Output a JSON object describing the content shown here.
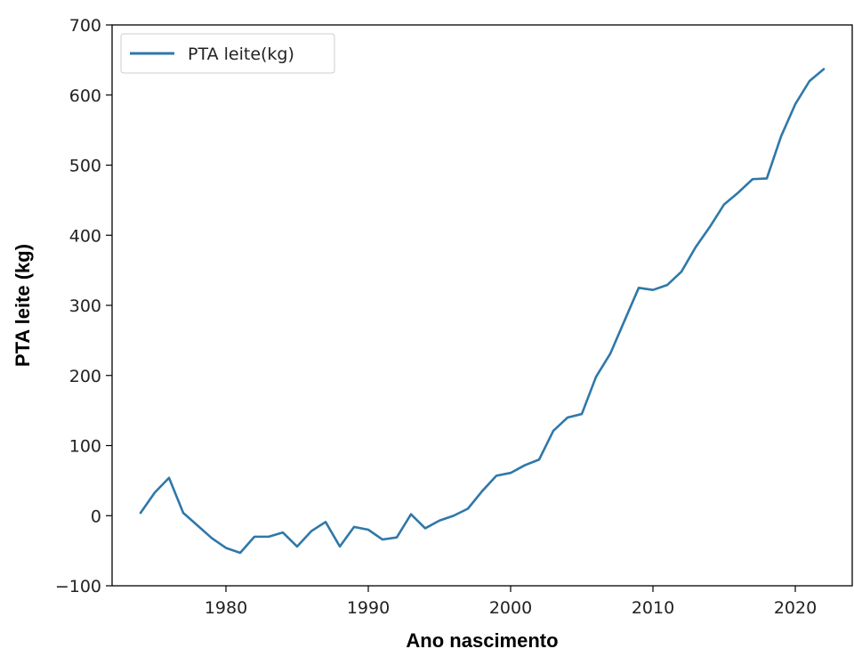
{
  "chart_data": {
    "type": "line",
    "xlabel": "Ano nascimento",
    "ylabel": "PTA leite (kg)",
    "xlim": [
      1972,
      2024
    ],
    "ylim": [
      -100,
      700
    ],
    "xticks": [
      1980,
      1990,
      2000,
      2010,
      2020
    ],
    "yticks": [
      -100,
      0,
      100,
      200,
      300,
      400,
      500,
      600,
      700
    ],
    "ytick_labels": [
      "−100",
      "0",
      "100",
      "200",
      "300",
      "400",
      "500",
      "600",
      "700"
    ],
    "grid": false,
    "legend_position": "top-left",
    "colors": {
      "line": "#2f78a8",
      "axis": "#000000"
    },
    "series": [
      {
        "name": "PTA leite(kg)",
        "x": [
          1974,
          1975,
          1976,
          1977,
          1978,
          1979,
          1980,
          1981,
          1982,
          1983,
          1984,
          1985,
          1986,
          1987,
          1988,
          1989,
          1990,
          1991,
          1992,
          1993,
          1994,
          1995,
          1996,
          1997,
          1998,
          1999,
          2000,
          2001,
          2002,
          2003,
          2004,
          2005,
          2006,
          2007,
          2008,
          2009,
          2010,
          2011,
          2012,
          2013,
          2014,
          2015,
          2016,
          2017,
          2018,
          2019,
          2020,
          2021,
          2022
        ],
        "y": [
          4,
          33,
          54,
          4,
          -14,
          -32,
          -46,
          -53,
          -30,
          -30,
          -24,
          -44,
          -22,
          -9,
          -44,
          -16,
          -20,
          -34,
          -31,
          2,
          -18,
          -7,
          0,
          10,
          35,
          57,
          61,
          72,
          80,
          121,
          140,
          145,
          198,
          231,
          278,
          325,
          322,
          329,
          348,
          383,
          412,
          444,
          461,
          480,
          481,
          541,
          587,
          620,
          637
        ]
      }
    ]
  }
}
